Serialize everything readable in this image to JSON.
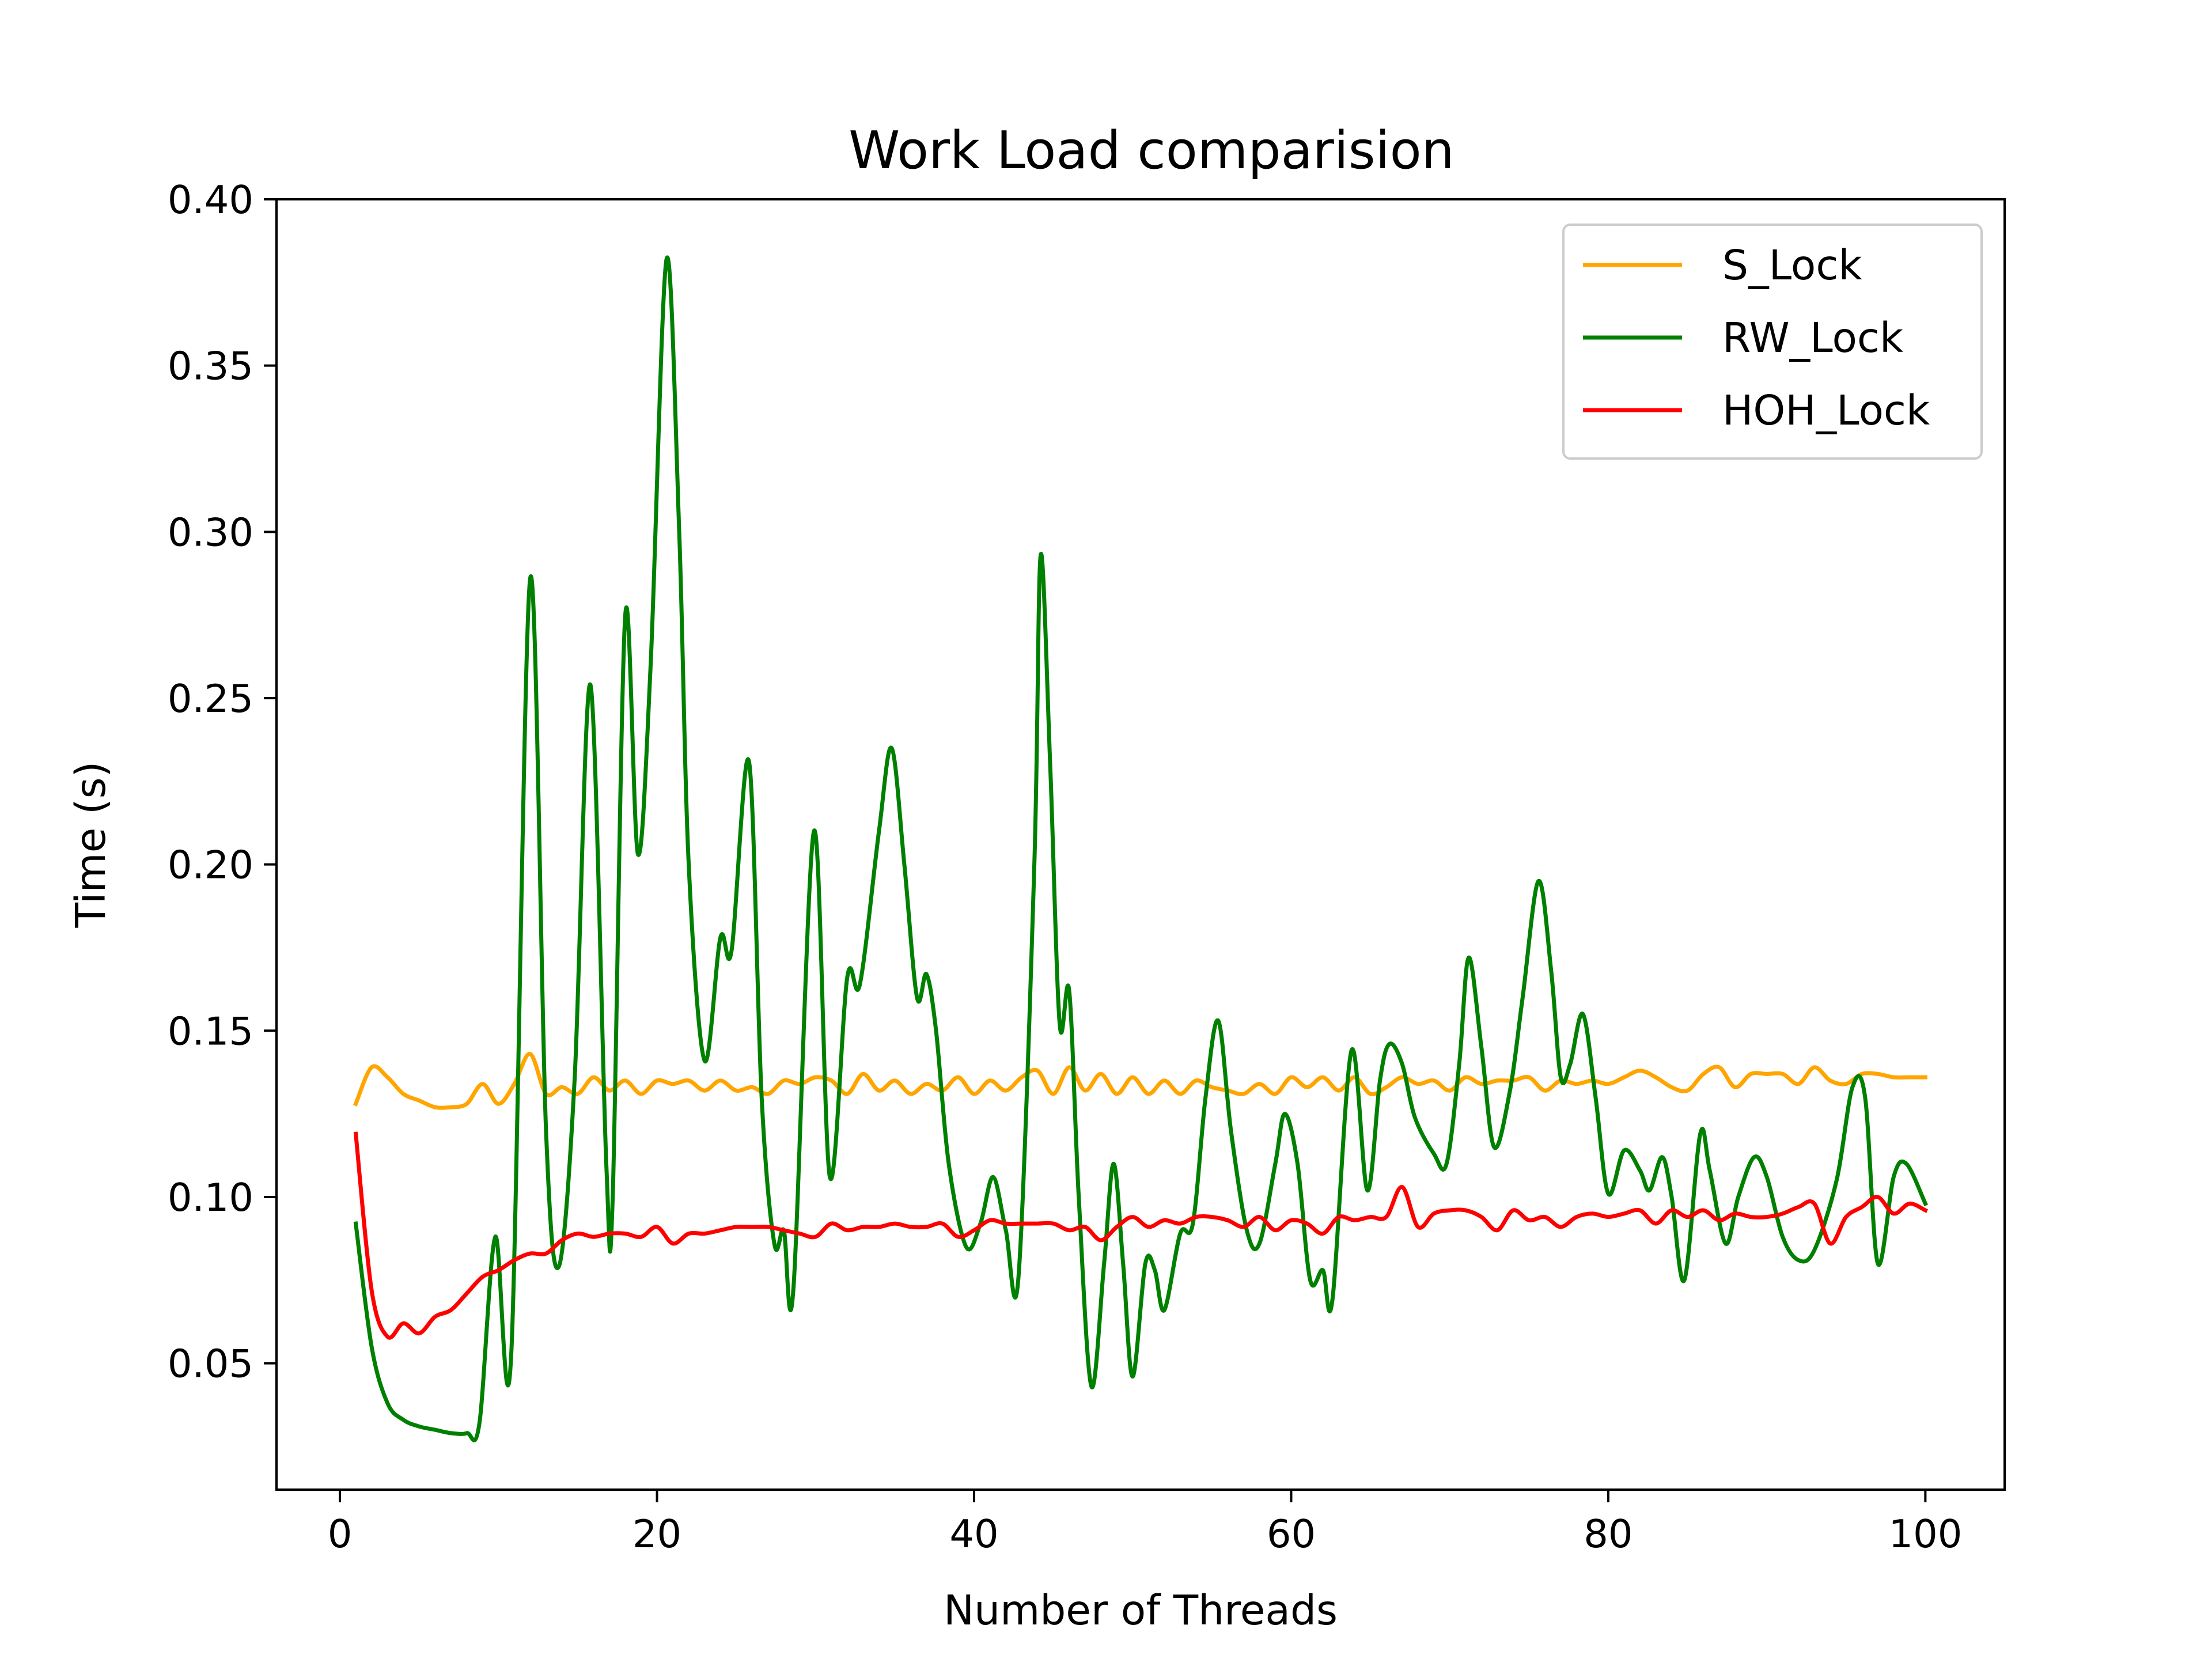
{
  "chart_data": {
    "type": "line",
    "title": "Work Load comparision",
    "xlabel": "Number of Threads",
    "ylabel": "Time (s)",
    "xlim": [
      -4,
      105
    ],
    "ylim": [
      0.012,
      0.4
    ],
    "xticks": [
      0,
      20,
      40,
      60,
      80,
      100
    ],
    "yticks": [
      0.05,
      0.1,
      0.15,
      0.2,
      0.25,
      0.3,
      0.35,
      0.4
    ],
    "xtick_labels": [
      "0",
      "20",
      "40",
      "60",
      "80",
      "100"
    ],
    "ytick_labels": [
      "0.05",
      "0.10",
      "0.15",
      "0.20",
      "0.25",
      "0.30",
      "0.35",
      "0.40"
    ],
    "grid": false,
    "legend_position": "top-right",
    "series": [
      {
        "name": "S_Lock",
        "color": "#FFA500",
        "points": [
          [
            1,
            0.128
          ],
          [
            2,
            0.139
          ],
          [
            3,
            0.136
          ],
          [
            4,
            0.131
          ],
          [
            5,
            0.129
          ],
          [
            6,
            0.127
          ],
          [
            7,
            0.127
          ],
          [
            8,
            0.128
          ],
          [
            9,
            0.134
          ],
          [
            10,
            0.128
          ],
          [
            11,
            0.134
          ],
          [
            12,
            0.143
          ],
          [
            13,
            0.131
          ],
          [
            14,
            0.133
          ],
          [
            15,
            0.131
          ],
          [
            16,
            0.136
          ],
          [
            17,
            0.132
          ],
          [
            18,
            0.135
          ],
          [
            19,
            0.131
          ],
          [
            20,
            0.135
          ],
          [
            21,
            0.134
          ],
          [
            22,
            0.135
          ],
          [
            23,
            0.132
          ],
          [
            24,
            0.135
          ],
          [
            25,
            0.132
          ],
          [
            26,
            0.133
          ],
          [
            27,
            0.131
          ],
          [
            28,
            0.135
          ],
          [
            29,
            0.134
          ],
          [
            30,
            0.136
          ],
          [
            31,
            0.135
          ],
          [
            32,
            0.131
          ],
          [
            33,
            0.137
          ],
          [
            34,
            0.132
          ],
          [
            35,
            0.135
          ],
          [
            36,
            0.131
          ],
          [
            37,
            0.134
          ],
          [
            38,
            0.132
          ],
          [
            39,
            0.136
          ],
          [
            40,
            0.131
          ],
          [
            41,
            0.135
          ],
          [
            42,
            0.132
          ],
          [
            43,
            0.136
          ],
          [
            44,
            0.138
          ],
          [
            45,
            0.131
          ],
          [
            46,
            0.139
          ],
          [
            47,
            0.132
          ],
          [
            48,
            0.137
          ],
          [
            49,
            0.131
          ],
          [
            50,
            0.136
          ],
          [
            51,
            0.131
          ],
          [
            52,
            0.135
          ],
          [
            53,
            0.131
          ],
          [
            54,
            0.135
          ],
          [
            55,
            0.133
          ],
          [
            56,
            0.132
          ],
          [
            57,
            0.131
          ],
          [
            58,
            0.134
          ],
          [
            59,
            0.131
          ],
          [
            60,
            0.136
          ],
          [
            61,
            0.133
          ],
          [
            62,
            0.136
          ],
          [
            63,
            0.132
          ],
          [
            64,
            0.136
          ],
          [
            65,
            0.131
          ],
          [
            66,
            0.133
          ],
          [
            67,
            0.136
          ],
          [
            68,
            0.134
          ],
          [
            69,
            0.135
          ],
          [
            70,
            0.132
          ],
          [
            71,
            0.136
          ],
          [
            72,
            0.134
          ],
          [
            73,
            0.135
          ],
          [
            74,
            0.135
          ],
          [
            75,
            0.136
          ],
          [
            76,
            0.132
          ],
          [
            77,
            0.135
          ],
          [
            78,
            0.134
          ],
          [
            79,
            0.135
          ],
          [
            80,
            0.134
          ],
          [
            81,
            0.136
          ],
          [
            82,
            0.138
          ],
          [
            83,
            0.136
          ],
          [
            84,
            0.133
          ],
          [
            85,
            0.132
          ],
          [
            86,
            0.137
          ],
          [
            87,
            0.139
          ],
          [
            88,
            0.133
          ],
          [
            89,
            0.137
          ],
          [
            90,
            0.137
          ],
          [
            91,
            0.137
          ],
          [
            92,
            0.134
          ],
          [
            93,
            0.139
          ],
          [
            94,
            0.135
          ],
          [
            95,
            0.134
          ],
          [
            96,
            0.137
          ],
          [
            97,
            0.137
          ],
          [
            98,
            0.136
          ],
          [
            99,
            0.136
          ],
          [
            100,
            0.136
          ]
        ]
      },
      {
        "name": "RW_Lock",
        "color": "#008000",
        "points": [
          [
            1,
            0.092
          ],
          [
            2,
            0.055
          ],
          [
            3,
            0.038
          ],
          [
            4,
            0.033
          ],
          [
            5,
            0.031
          ],
          [
            6,
            0.03
          ],
          [
            7,
            0.029
          ],
          [
            8,
            0.029
          ],
          [
            8.8,
            0.032
          ],
          [
            9.8,
            0.088
          ],
          [
            10.8,
            0.052
          ],
          [
            12,
            0.286
          ],
          [
            13,
            0.12
          ],
          [
            13.8,
            0.079
          ],
          [
            14.8,
            0.135
          ],
          [
            15.8,
            0.254
          ],
          [
            16.8,
            0.11
          ],
          [
            17.2,
            0.099
          ],
          [
            18,
            0.275
          ],
          [
            18.8,
            0.203
          ],
          [
            19.6,
            0.26
          ],
          [
            20.6,
            0.382
          ],
          [
            21.4,
            0.3
          ],
          [
            22,
            0.2
          ],
          [
            23,
            0.141
          ],
          [
            24,
            0.178
          ],
          [
            24.7,
            0.174
          ],
          [
            25.8,
            0.231
          ],
          [
            26.6,
            0.13
          ],
          [
            27.4,
            0.086
          ],
          [
            28.0,
            0.09
          ],
          [
            28.6,
            0.072
          ],
          [
            29.9,
            0.21
          ],
          [
            30.9,
            0.106
          ],
          [
            32.0,
            0.166
          ],
          [
            32.8,
            0.164
          ],
          [
            34.0,
            0.21
          ],
          [
            34.8,
            0.235
          ],
          [
            35.6,
            0.2
          ],
          [
            36.4,
            0.16
          ],
          [
            37.0,
            0.167
          ],
          [
            37.6,
            0.15
          ],
          [
            38.4,
            0.11
          ],
          [
            39.5,
            0.085
          ],
          [
            40.4,
            0.092
          ],
          [
            41.2,
            0.106
          ],
          [
            42.0,
            0.09
          ],
          [
            42.8,
            0.076
          ],
          [
            43.8,
            0.2
          ],
          [
            44.2,
            0.293
          ],
          [
            44.8,
            0.23
          ],
          [
            45.4,
            0.152
          ],
          [
            46.0,
            0.162
          ],
          [
            46.6,
            0.1
          ],
          [
            47.4,
            0.043
          ],
          [
            48.2,
            0.08
          ],
          [
            48.8,
            0.11
          ],
          [
            49.4,
            0.08
          ],
          [
            50.0,
            0.046
          ],
          [
            50.8,
            0.08
          ],
          [
            51.4,
            0.078
          ],
          [
            52.0,
            0.066
          ],
          [
            53.0,
            0.089
          ],
          [
            53.8,
            0.092
          ],
          [
            54.6,
            0.13
          ],
          [
            55.4,
            0.153
          ],
          [
            56.2,
            0.12
          ],
          [
            57.2,
            0.09
          ],
          [
            58.0,
            0.086
          ],
          [
            59.0,
            0.11
          ],
          [
            59.6,
            0.125
          ],
          [
            60.4,
            0.11
          ],
          [
            61.2,
            0.075
          ],
          [
            62.0,
            0.078
          ],
          [
            62.6,
            0.069
          ],
          [
            63.8,
            0.144
          ],
          [
            64.8,
            0.102
          ],
          [
            65.6,
            0.135
          ],
          [
            66.2,
            0.146
          ],
          [
            67.0,
            0.14
          ],
          [
            67.8,
            0.124
          ],
          [
            69.0,
            0.113
          ],
          [
            69.8,
            0.11
          ],
          [
            70.6,
            0.14
          ],
          [
            71.2,
            0.172
          ],
          [
            72.0,
            0.145
          ],
          [
            72.8,
            0.115
          ],
          [
            73.8,
            0.132
          ],
          [
            74.6,
            0.16
          ],
          [
            75.6,
            0.195
          ],
          [
            76.4,
            0.168
          ],
          [
            77.0,
            0.136
          ],
          [
            77.6,
            0.14
          ],
          [
            78.4,
            0.155
          ],
          [
            79.2,
            0.13
          ],
          [
            80.0,
            0.101
          ],
          [
            81.0,
            0.114
          ],
          [
            82.0,
            0.108
          ],
          [
            82.6,
            0.102
          ],
          [
            83.4,
            0.112
          ],
          [
            84.0,
            0.1
          ],
          [
            84.8,
            0.075
          ],
          [
            85.8,
            0.119
          ],
          [
            86.4,
            0.108
          ],
          [
            87.4,
            0.086
          ],
          [
            88.2,
            0.1
          ],
          [
            89.2,
            0.112
          ],
          [
            90.0,
            0.106
          ],
          [
            91.0,
            0.088
          ],
          [
            92.0,
            0.081
          ],
          [
            93.0,
            0.084
          ],
          [
            94.4,
            0.105
          ],
          [
            95.4,
            0.133
          ],
          [
            96.2,
            0.13
          ],
          [
            97.0,
            0.08
          ],
          [
            98.0,
            0.106
          ],
          [
            98.8,
            0.11
          ],
          [
            100,
            0.098
          ]
        ]
      },
      {
        "name": "HOH_Lock",
        "color": "#FF0000",
        "points": [
          [
            1,
            0.119
          ],
          [
            2,
            0.072
          ],
          [
            3,
            0.058
          ],
          [
            4,
            0.062
          ],
          [
            5,
            0.059
          ],
          [
            6,
            0.064
          ],
          [
            7,
            0.066
          ],
          [
            8,
            0.071
          ],
          [
            9,
            0.076
          ],
          [
            10,
            0.078
          ],
          [
            11,
            0.081
          ],
          [
            12,
            0.083
          ],
          [
            13,
            0.083
          ],
          [
            14,
            0.087
          ],
          [
            15,
            0.089
          ],
          [
            16,
            0.088
          ],
          [
            17,
            0.089
          ],
          [
            18,
            0.089
          ],
          [
            19,
            0.088
          ],
          [
            20,
            0.091
          ],
          [
            21,
            0.086
          ],
          [
            22,
            0.089
          ],
          [
            23,
            0.089
          ],
          [
            24,
            0.09
          ],
          [
            25,
            0.091
          ],
          [
            26,
            0.091
          ],
          [
            27,
            0.091
          ],
          [
            28,
            0.09
          ],
          [
            29,
            0.089
          ],
          [
            30,
            0.088
          ],
          [
            31,
            0.092
          ],
          [
            32,
            0.09
          ],
          [
            33,
            0.091
          ],
          [
            34,
            0.091
          ],
          [
            35,
            0.092
          ],
          [
            36,
            0.091
          ],
          [
            37,
            0.091
          ],
          [
            38,
            0.092
          ],
          [
            39,
            0.088
          ],
          [
            40,
            0.09
          ],
          [
            41,
            0.093
          ],
          [
            42,
            0.092
          ],
          [
            43,
            0.092
          ],
          [
            44,
            0.092
          ],
          [
            45,
            0.092
          ],
          [
            46,
            0.09
          ],
          [
            47,
            0.091
          ],
          [
            48,
            0.087
          ],
          [
            49,
            0.091
          ],
          [
            50,
            0.094
          ],
          [
            51,
            0.091
          ],
          [
            52,
            0.093
          ],
          [
            53,
            0.092
          ],
          [
            54,
            0.094
          ],
          [
            55,
            0.094
          ],
          [
            56,
            0.093
          ],
          [
            57,
            0.091
          ],
          [
            58,
            0.094
          ],
          [
            59,
            0.09
          ],
          [
            60,
            0.093
          ],
          [
            61,
            0.092
          ],
          [
            62,
            0.089
          ],
          [
            63,
            0.094
          ],
          [
            64,
            0.093
          ],
          [
            65,
            0.094
          ],
          [
            66,
            0.094
          ],
          [
            67,
            0.103
          ],
          [
            68,
            0.091
          ],
          [
            69,
            0.095
          ],
          [
            70,
            0.096
          ],
          [
            71,
            0.096
          ],
          [
            72,
            0.094
          ],
          [
            73,
            0.09
          ],
          [
            74,
            0.096
          ],
          [
            75,
            0.093
          ],
          [
            76,
            0.094
          ],
          [
            77,
            0.091
          ],
          [
            78,
            0.094
          ],
          [
            79,
            0.095
          ],
          [
            80,
            0.094
          ],
          [
            81,
            0.095
          ],
          [
            82,
            0.096
          ],
          [
            83,
            0.092
          ],
          [
            84,
            0.096
          ],
          [
            85,
            0.094
          ],
          [
            86,
            0.096
          ],
          [
            87,
            0.093
          ],
          [
            88,
            0.095
          ],
          [
            89,
            0.094
          ],
          [
            90,
            0.094
          ],
          [
            91,
            0.095
          ],
          [
            92,
            0.097
          ],
          [
            93,
            0.098
          ],
          [
            94,
            0.086
          ],
          [
            95,
            0.094
          ],
          [
            96,
            0.097
          ],
          [
            97,
            0.1
          ],
          [
            98,
            0.095
          ],
          [
            99,
            0.098
          ],
          [
            100,
            0.096
          ]
        ]
      }
    ]
  }
}
